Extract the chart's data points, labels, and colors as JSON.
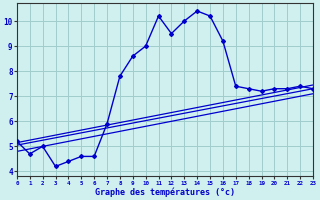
{
  "xlabel": "Graphé des températures (°c)",
  "xlabel_display": "Graphe des températures (°c)",
  "background_color": "#d0f0f0",
  "grid_color": "#a0cccc",
  "line_color": "#0000cc",
  "x_hours": [
    0,
    1,
    2,
    3,
    4,
    5,
    6,
    7,
    8,
    9,
    10,
    11,
    12,
    13,
    14,
    15,
    16,
    17,
    18,
    19,
    20,
    21,
    22,
    23
  ],
  "temp_main": [
    5.2,
    4.7,
    5.0,
    4.2,
    4.4,
    4.6,
    4.6,
    5.9,
    7.8,
    8.6,
    9.0,
    10.2,
    9.5,
    10.0,
    10.4,
    10.2,
    9.2,
    7.4,
    7.3,
    7.2,
    7.3,
    7.3,
    7.4,
    7.3
  ],
  "reg_line1": [
    5.05,
    7.3
  ],
  "reg_line2": [
    5.15,
    7.45
  ],
  "reg_line3": [
    4.8,
    7.1
  ],
  "ylim": [
    3.8,
    10.7
  ],
  "xlim": [
    0,
    23
  ],
  "yticks": [
    4,
    5,
    6,
    7,
    8,
    9,
    10
  ],
  "xticks": [
    0,
    1,
    2,
    3,
    4,
    5,
    6,
    7,
    8,
    9,
    10,
    11,
    12,
    13,
    14,
    15,
    16,
    17,
    18,
    19,
    20,
    21,
    22,
    23
  ]
}
